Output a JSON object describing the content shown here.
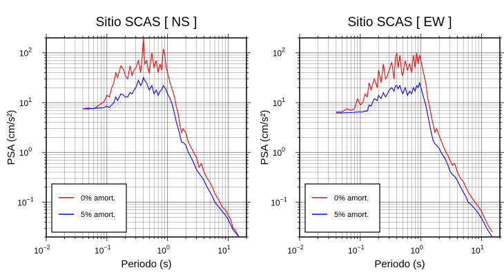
{
  "chart_data": [
    {
      "type": "line",
      "title": "Sitio SCAS [ NS ]",
      "xlabel": "Periodo (s)",
      "ylabel": "PSA (cm/s²)",
      "xscale": "log",
      "yscale": "log",
      "xlim": [
        0.01,
        20
      ],
      "ylim": [
        0.02,
        200
      ],
      "xticks": [
        {
          "base": "10",
          "exp": "−2"
        },
        {
          "base": "10",
          "exp": "−1"
        },
        {
          "base": "10",
          "exp": "0"
        },
        {
          "base": "10",
          "exp": "1"
        }
      ],
      "yticks": [
        {
          "base": "10",
          "exp": "−1"
        },
        {
          "base": "10",
          "exp": "0"
        },
        {
          "base": "10",
          "exp": "1"
        },
        {
          "base": "10",
          "exp": "2"
        }
      ],
      "grid": true,
      "legend_position": "bottom-left",
      "series": [
        {
          "name": "0% amort.",
          "color": "#ff0000",
          "x": [
            0.04,
            0.05,
            0.06,
            0.07,
            0.08,
            0.09,
            0.1,
            0.11,
            0.12,
            0.13,
            0.14,
            0.15,
            0.17,
            0.19,
            0.2,
            0.22,
            0.24,
            0.26,
            0.28,
            0.3,
            0.33,
            0.36,
            0.38,
            0.4,
            0.42,
            0.45,
            0.48,
            0.5,
            0.55,
            0.6,
            0.65,
            0.7,
            0.75,
            0.8,
            0.85,
            0.9,
            0.95,
            1.0,
            1.1,
            1.2,
            1.3,
            1.4,
            1.5,
            1.6,
            1.7,
            1.8,
            2.0,
            2.2,
            2.5,
            2.8,
            3.0,
            3.3,
            3.6,
            4.0,
            4.5,
            5.0,
            5.5,
            6.0,
            7.0,
            8.0,
            9.0,
            10.0,
            11.0,
            12.0,
            13.0,
            15.0
          ],
          "y": [
            7.5,
            7.8,
            7.5,
            8.5,
            9.5,
            10.5,
            14,
            13,
            20,
            25,
            40,
            32,
            55,
            45,
            35,
            30,
            55,
            35,
            45,
            50,
            70,
            40,
            80,
            200,
            60,
            70,
            45,
            40,
            100,
            50,
            70,
            40,
            60,
            45,
            120,
            90,
            50,
            40,
            25,
            18,
            13,
            8,
            6,
            3.5,
            2.5,
            3.0,
            2.5,
            1.6,
            1.2,
            0.9,
            0.8,
            0.5,
            0.6,
            0.4,
            0.3,
            0.25,
            0.2,
            0.15,
            0.11,
            0.08,
            0.07,
            0.055,
            0.045,
            0.03,
            0.028,
            0.02
          ]
        },
        {
          "name": "5% amort.",
          "color": "#0000ff",
          "x": [
            0.04,
            0.05,
            0.06,
            0.07,
            0.08,
            0.09,
            0.1,
            0.11,
            0.12,
            0.13,
            0.14,
            0.15,
            0.17,
            0.19,
            0.2,
            0.22,
            0.24,
            0.26,
            0.28,
            0.3,
            0.33,
            0.36,
            0.38,
            0.4,
            0.42,
            0.45,
            0.48,
            0.5,
            0.55,
            0.6,
            0.65,
            0.7,
            0.75,
            0.8,
            0.85,
            0.9,
            0.95,
            1.0,
            1.1,
            1.2,
            1.3,
            1.4,
            1.5,
            1.6,
            1.7,
            1.8,
            2.0,
            2.2,
            2.5,
            2.8,
            3.0,
            3.3,
            3.6,
            4.0,
            4.5,
            5.0,
            5.5,
            6.0,
            7.0,
            8.0,
            9.0,
            10.0,
            11.0,
            12.0,
            13.0,
            15.0
          ],
          "y": [
            7.5,
            7.5,
            7.6,
            7.8,
            7.8,
            8.0,
            8.5,
            8.0,
            9.0,
            10,
            13,
            11,
            15,
            14,
            13,
            13,
            16,
            15,
            18,
            20,
            28,
            22,
            25,
            32,
            28,
            25,
            20,
            18,
            22,
            15,
            18,
            14,
            17,
            18,
            22,
            20,
            18,
            15,
            12,
            9,
            6,
            4,
            3,
            2.2,
            1.6,
            1.6,
            1.4,
            1.0,
            0.75,
            0.55,
            0.45,
            0.38,
            0.33,
            0.27,
            0.2,
            0.16,
            0.13,
            0.1,
            0.08,
            0.065,
            0.055,
            0.045,
            0.035,
            0.028,
            0.025,
            0.02
          ]
        }
      ]
    },
    {
      "type": "line",
      "title": "Sitio SCAS [ EW ]",
      "xlabel": "Periodo (s)",
      "ylabel": "PSA (cm/s²)",
      "xscale": "log",
      "yscale": "log",
      "xlim": [
        0.01,
        20
      ],
      "ylim": [
        0.02,
        200
      ],
      "xticks": [
        {
          "base": "10",
          "exp": "−2"
        },
        {
          "base": "10",
          "exp": "−1"
        },
        {
          "base": "10",
          "exp": "0"
        },
        {
          "base": "10",
          "exp": "1"
        }
      ],
      "yticks": [
        {
          "base": "10",
          "exp": "−1"
        },
        {
          "base": "10",
          "exp": "0"
        },
        {
          "base": "10",
          "exp": "1"
        },
        {
          "base": "10",
          "exp": "2"
        }
      ],
      "grid": true,
      "legend_position": "bottom-left",
      "series": [
        {
          "name": "0% amort.",
          "color": "#ff0000",
          "x": [
            0.04,
            0.05,
            0.06,
            0.07,
            0.08,
            0.09,
            0.1,
            0.11,
            0.12,
            0.13,
            0.14,
            0.15,
            0.17,
            0.19,
            0.2,
            0.22,
            0.24,
            0.26,
            0.28,
            0.3,
            0.33,
            0.36,
            0.38,
            0.4,
            0.42,
            0.45,
            0.48,
            0.5,
            0.55,
            0.6,
            0.65,
            0.7,
            0.75,
            0.8,
            0.85,
            0.9,
            0.95,
            1.0,
            1.1,
            1.2,
            1.3,
            1.4,
            1.5,
            1.6,
            1.7,
            1.8,
            2.0,
            2.2,
            2.5,
            2.8,
            3.0,
            3.3,
            3.6,
            4.0,
            4.5,
            5.0,
            5.5,
            6.0,
            7.0,
            8.0,
            9.0,
            10.0,
            11.0,
            12.0,
            13.0,
            15.0
          ],
          "y": [
            6.5,
            6.5,
            7.5,
            7.0,
            7.5,
            12,
            9,
            10,
            15,
            13,
            25,
            18,
            30,
            20,
            45,
            25,
            60,
            30,
            35,
            45,
            65,
            30,
            80,
            100,
            50,
            90,
            40,
            35,
            70,
            45,
            60,
            40,
            90,
            50,
            100,
            60,
            90,
            70,
            40,
            25,
            12,
            8,
            5,
            3.5,
            2.5,
            3.0,
            2.2,
            1.6,
            1.1,
            0.85,
            0.7,
            0.55,
            0.6,
            0.4,
            0.3,
            0.26,
            0.2,
            0.16,
            0.12,
            0.095,
            0.08,
            0.065,
            0.05,
            0.04,
            0.033,
            0.025
          ]
        },
        {
          "name": "5% amort.",
          "color": "#0000ff",
          "x": [
            0.04,
            0.05,
            0.06,
            0.07,
            0.08,
            0.09,
            0.1,
            0.11,
            0.12,
            0.13,
            0.14,
            0.15,
            0.17,
            0.19,
            0.2,
            0.22,
            0.24,
            0.26,
            0.28,
            0.3,
            0.33,
            0.36,
            0.38,
            0.4,
            0.42,
            0.45,
            0.48,
            0.5,
            0.55,
            0.6,
            0.65,
            0.7,
            0.75,
            0.8,
            0.85,
            0.9,
            0.95,
            1.0,
            1.1,
            1.2,
            1.3,
            1.4,
            1.5,
            1.6,
            1.7,
            1.8,
            2.0,
            2.2,
            2.5,
            2.8,
            3.0,
            3.3,
            3.6,
            4.0,
            4.5,
            5.0,
            5.5,
            6.0,
            7.0,
            8.0,
            9.0,
            10.0,
            11.0,
            12.0,
            13.0,
            15.0
          ],
          "y": [
            6.2,
            6.2,
            6.3,
            6.3,
            6.4,
            6.5,
            6.5,
            6.5,
            6.8,
            6.7,
            9,
            8.5,
            12,
            11,
            14,
            12,
            16,
            13,
            15,
            18,
            20,
            17,
            22,
            22,
            19,
            22,
            17,
            15,
            20,
            14,
            17,
            15,
            20,
            17,
            22,
            20,
            25,
            20,
            13,
            9,
            5.5,
            3.5,
            2.3,
            1.7,
            1.5,
            1.4,
            1.2,
            0.95,
            0.75,
            0.55,
            0.42,
            0.36,
            0.33,
            0.27,
            0.2,
            0.16,
            0.13,
            0.1,
            0.085,
            0.07,
            0.058,
            0.047,
            0.038,
            0.031,
            0.026,
            0.02
          ]
        }
      ]
    }
  ]
}
